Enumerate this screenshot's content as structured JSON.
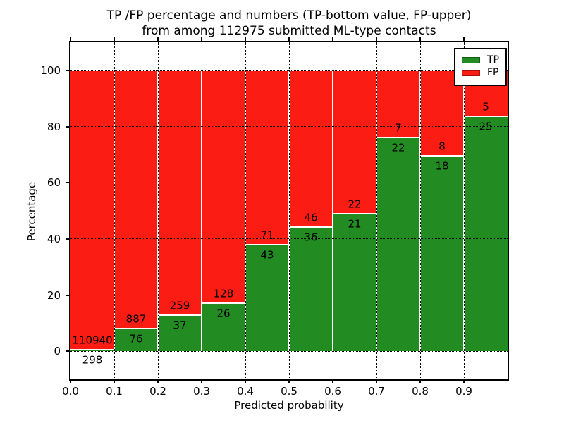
{
  "chart_data": {
    "type": "bar",
    "stacked": true,
    "normalized_to_100_percent": true,
    "title_line1": "TP /FP percentage and numbers (TP-bottom value, FP-upper)",
    "title_line2": "from among 112975 submitted ML-type contacts",
    "xlabel": "Predicted probability",
    "ylabel": "Percentage",
    "xlim": [
      0.0,
      1.0
    ],
    "ylim": [
      -10,
      110
    ],
    "grid": "dotted black, horizontal at y ticks and vertical at x ticks",
    "legend_position": "upper-right",
    "x_tick_labels": [
      "0.0",
      "0.1",
      "0.2",
      "0.3",
      "0.4",
      "0.5",
      "0.6",
      "0.7",
      "0.8",
      "0.9"
    ],
    "y_tick_values": [
      0,
      20,
      40,
      60,
      80,
      100
    ],
    "y_tick_labels": [
      "0",
      "20",
      "40",
      "60",
      "80",
      "100"
    ],
    "categories": [
      "0.0-0.1",
      "0.1-0.2",
      "0.2-0.3",
      "0.3-0.4",
      "0.4-0.5",
      "0.5-0.6",
      "0.6-0.7",
      "0.7-0.8",
      "0.8-0.9",
      "0.9-1.0"
    ],
    "series": [
      {
        "name": "TP",
        "counts": [
          298,
          76,
          37,
          26,
          43,
          36,
          21,
          22,
          18,
          25
        ]
      },
      {
        "name": "FP",
        "counts": [
          110940,
          887,
          259,
          128,
          71,
          46,
          22,
          7,
          8,
          5
        ]
      }
    ],
    "bar_height_rule": "TP segment height = TP/(TP+FP)*100 percent; FP fills up to 100",
    "legend": [
      {
        "label": "TP",
        "series_key": "tp"
      },
      {
        "label": "FP",
        "series_key": "fp"
      }
    ],
    "colors": {
      "tp": "#228b22",
      "fp": "#fb1c13",
      "bar_edge": "#ffffff",
      "grid": "#000000",
      "text": "#000000",
      "background": "#ffffff"
    }
  }
}
